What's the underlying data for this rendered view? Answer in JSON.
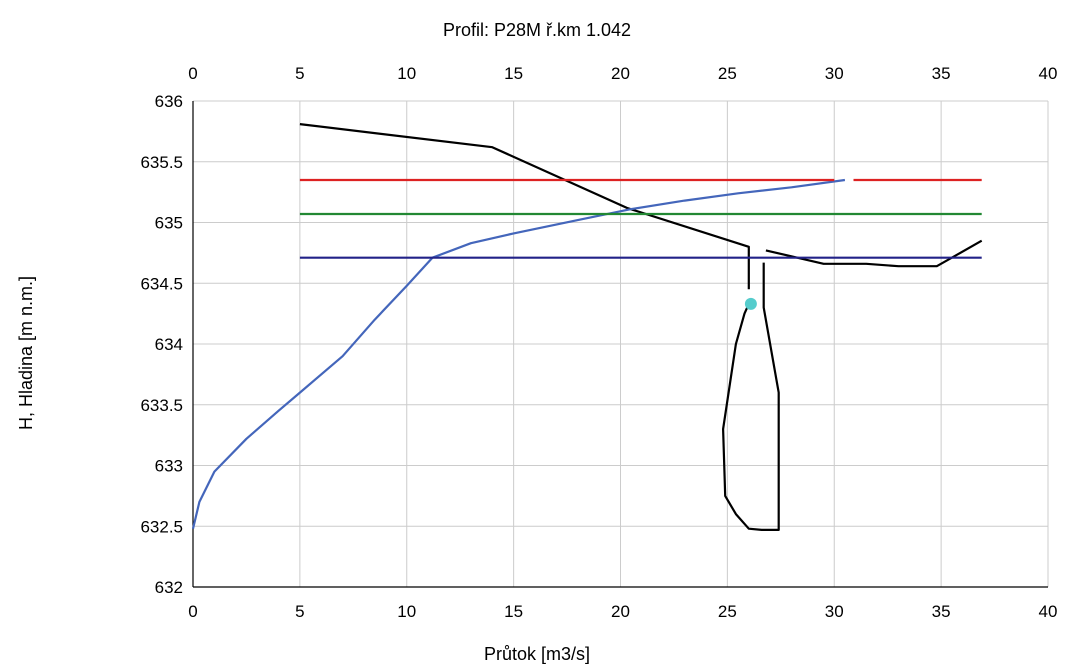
{
  "chart_data": {
    "type": "line",
    "title": "Profil: P28M  ř.km 1.042",
    "xlabel": "Průtok [m3/s]",
    "ylabel": "H, Hladina [m n.m.]",
    "xlim": [
      0,
      40
    ],
    "ylim": [
      632,
      636
    ],
    "x_ticks": [
      0,
      5,
      10,
      15,
      20,
      25,
      30,
      35,
      40
    ],
    "y_ticks": [
      632,
      632.5,
      633,
      633.5,
      634,
      634.5,
      635,
      635.5,
      636
    ],
    "x_tick_labels": [
      "0",
      "5",
      "10",
      "15",
      "20",
      "25",
      "30",
      "35",
      "40"
    ],
    "y_tick_labels": [
      "632",
      "632.5",
      "633",
      "633.5",
      "634",
      "634.5",
      "635",
      "635.5",
      "636"
    ],
    "top_axis_tick_labels": [
      "0",
      "5",
      "10",
      "15",
      "20",
      "25",
      "30",
      "35",
      "40"
    ],
    "grid": true,
    "series": [
      {
        "color": "#000000",
        "points": [
          [
            5.0,
            635.81
          ],
          [
            14.0,
            635.62
          ],
          [
            20.3,
            635.12
          ],
          [
            26.0,
            634.8
          ],
          [
            26.0,
            634.7
          ],
          [
            26.0,
            634.45
          ]
        ],
        "dash_gap": true
      },
      {
        "color": "#000000",
        "points": [
          [
            26.8,
            634.77
          ],
          [
            29.5,
            634.66
          ],
          [
            31.5,
            634.66
          ],
          [
            33.0,
            634.64
          ],
          [
            34.8,
            634.64
          ],
          [
            35.8,
            634.74
          ],
          [
            36.9,
            634.85
          ]
        ]
      },
      {
        "color": "#000000",
        "points": [
          [
            26.7,
            634.67
          ],
          [
            26.7,
            634.3
          ],
          [
            27.4,
            633.6
          ],
          [
            27.4,
            632.47
          ],
          [
            26.6,
            632.47
          ],
          [
            26.0,
            632.48
          ],
          [
            25.4,
            632.6
          ],
          [
            24.9,
            632.75
          ],
          [
            24.8,
            633.3
          ],
          [
            25.4,
            634.0
          ],
          [
            25.8,
            634.25
          ],
          [
            26.0,
            634.33
          ]
        ]
      },
      {
        "color": "#4466bb",
        "points": [
          [
            0.0,
            632.48
          ],
          [
            0.3,
            632.7
          ],
          [
            1.0,
            632.95
          ],
          [
            2.5,
            633.22
          ],
          [
            4.0,
            633.45
          ],
          [
            5.0,
            633.6
          ],
          [
            7.0,
            633.9
          ],
          [
            8.5,
            634.2
          ],
          [
            10.0,
            634.48
          ],
          [
            11.2,
            634.71
          ],
          [
            13.0,
            634.83
          ],
          [
            15.0,
            634.91
          ],
          [
            18.0,
            635.02
          ],
          [
            20.5,
            635.11
          ],
          [
            23.0,
            635.18
          ],
          [
            25.5,
            635.24
          ],
          [
            28.0,
            635.29
          ],
          [
            30.5,
            635.35
          ]
        ]
      },
      {
        "color": "#dd2222",
        "points": [
          [
            5.0,
            635.35
          ],
          [
            30.0,
            635.35
          ]
        ]
      },
      {
        "color": "#dd2222",
        "points": [
          [
            30.9,
            635.35
          ],
          [
            36.9,
            635.35
          ]
        ]
      },
      {
        "color": "#228833",
        "points": [
          [
            5.0,
            635.07
          ],
          [
            36.9,
            635.07
          ]
        ]
      },
      {
        "color": "#222288",
        "points": [
          [
            5.0,
            634.71
          ],
          [
            36.9,
            634.71
          ]
        ]
      }
    ],
    "points": [
      {
        "color": "#55cccc",
        "x": 26.1,
        "y": 634.33
      }
    ]
  }
}
